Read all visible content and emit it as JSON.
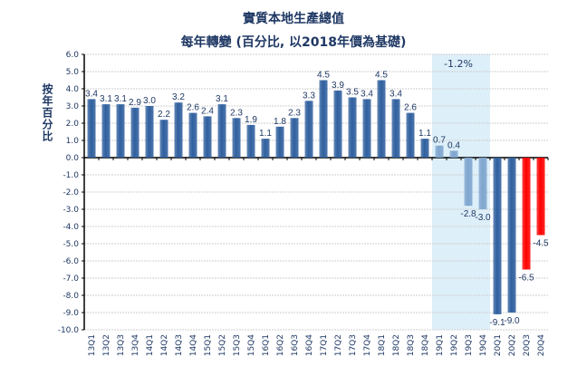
{
  "chart_data": {
    "type": "bar",
    "title": "實質本地生產總值",
    "subtitle": "每年轉變 (百分比, 以2018年價為基礎)",
    "ylabel": "按年百分比",
    "xlabel": "",
    "ylim": [
      -10,
      6
    ],
    "yticks": [
      "6.0",
      "5.0",
      "4.0",
      "3.0",
      "2.0",
      "1.0",
      "0.0",
      "-1.0",
      "-2.0",
      "-3.0",
      "-4.0",
      "-5.0",
      "-6.0",
      "-7.0",
      "-8.0",
      "-9.0",
      "-10.0"
    ],
    "grid": true,
    "categories": [
      "13Q1",
      "13Q2",
      "13Q3",
      "13Q4",
      "14Q1",
      "14Q2",
      "14Q3",
      "14Q4",
      "15Q1",
      "15Q2",
      "15Q3",
      "15Q4",
      "16Q1",
      "16Q2",
      "16Q3",
      "16Q4",
      "17Q1",
      "17Q2",
      "17Q3",
      "17Q4",
      "18Q1",
      "18Q2",
      "18Q3",
      "18Q4",
      "19Q1",
      "19Q2",
      "19Q3",
      "19Q4",
      "20Q1",
      "20Q2",
      "20Q3",
      "20Q4"
    ],
    "values": [
      3.4,
      3.1,
      3.1,
      2.9,
      3.0,
      2.2,
      3.2,
      2.6,
      2.4,
      3.1,
      2.3,
      1.9,
      1.1,
      1.8,
      2.3,
      3.3,
      4.5,
      3.9,
      3.5,
      3.4,
      4.5,
      3.4,
      2.6,
      1.1,
      0.7,
      0.4,
      -2.8,
      -3.0,
      -9.1,
      -9.0,
      -6.5,
      -4.5
    ],
    "labels": [
      "3.4",
      "3.1",
      "3.1",
      "2.9",
      "3.0",
      "2.2",
      "3.2",
      "2.6",
      "2.4",
      "3.1",
      "2.3",
      "1.9",
      "1.1",
      "1.8",
      "2.3",
      "3.3",
      "4.5",
      "3.9",
      "3.5",
      "3.4",
      "4.5",
      "3.4",
      "2.6",
      "1.1",
      "0.7",
      "0.4",
      "-2.8",
      "-3.0",
      "-9.1",
      "-9.0",
      "-6.5",
      "-4.5"
    ],
    "bar_groups": [
      "dark",
      "dark",
      "dark",
      "dark",
      "dark",
      "dark",
      "dark",
      "dark",
      "dark",
      "dark",
      "dark",
      "dark",
      "dark",
      "dark",
      "dark",
      "dark",
      "dark",
      "dark",
      "dark",
      "dark",
      "dark",
      "dark",
      "dark",
      "dark",
      "light",
      "light",
      "light",
      "light",
      "dark",
      "dark",
      "red",
      "red"
    ],
    "highlight": {
      "from": "19Q1",
      "to": "19Q4",
      "annotation": "-1.2%"
    },
    "colors": {
      "dark": "#2f5f9e",
      "light": "#7fa6cf",
      "red": "#ff0000",
      "highlight": "#ddeff9",
      "text": "#1f3864"
    }
  }
}
